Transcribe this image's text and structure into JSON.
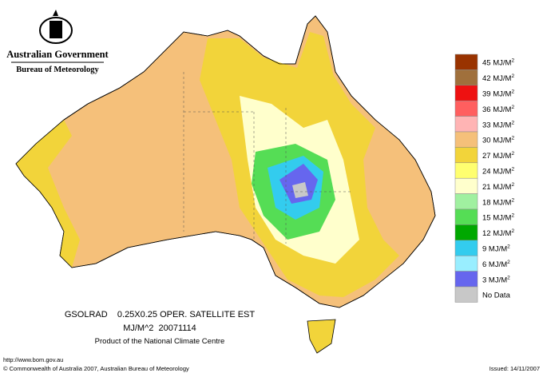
{
  "header": {
    "title": "Australian Government",
    "subtitle": "Bureau of Meteorology"
  },
  "caption": {
    "line1": "GSOLRAD    0.25X0.25 OPER. SATELLITE EST",
    "line2": "MJ/M^2  20071114",
    "line3": "Product of the National Climate Centre"
  },
  "legend": {
    "items": [
      {
        "label": "45 MJ/M",
        "sup": "2",
        "color": "#993300"
      },
      {
        "label": "42 MJ/M",
        "sup": "2",
        "color": "#a0703c"
      },
      {
        "label": "39 MJ/M",
        "sup": "2",
        "color": "#ee1111"
      },
      {
        "label": "36 MJ/M",
        "sup": "2",
        "color": "#ff5f5f"
      },
      {
        "label": "33 MJ/M",
        "sup": "2",
        "color": "#ffb4b4"
      },
      {
        "label": "30 MJ/M",
        "sup": "2",
        "color": "#f5c07a"
      },
      {
        "label": "27 MJ/M",
        "sup": "2",
        "color": "#f2d43a"
      },
      {
        "label": "24 MJ/M",
        "sup": "2",
        "color": "#ffff70"
      },
      {
        "label": "21 MJ/M",
        "sup": "2",
        "color": "#ffffcc"
      },
      {
        "label": "18 MJ/M",
        "sup": "2",
        "color": "#a0f0a0"
      },
      {
        "label": "15 MJ/M",
        "sup": "2",
        "color": "#55dd55"
      },
      {
        "label": "12 MJ/M",
        "sup": "2",
        "color": "#00a800"
      },
      {
        "label": "9 MJ/M",
        "sup": "2",
        "color": "#33ccee"
      },
      {
        "label": "6 MJ/M",
        "sup": "2",
        "color": "#99eeff"
      },
      {
        "label": "3 MJ/M",
        "sup": "2",
        "color": "#6666ee"
      },
      {
        "label": "No Data",
        "sup": null,
        "color": "#c8c8c8"
      }
    ]
  },
  "footer": {
    "url": "http://www.bom.gov.au",
    "copyright": "© Commonwealth of Australia 2007, Australian Bureau of Meteorology",
    "issued": "Issued: 14/11/2007"
  }
}
